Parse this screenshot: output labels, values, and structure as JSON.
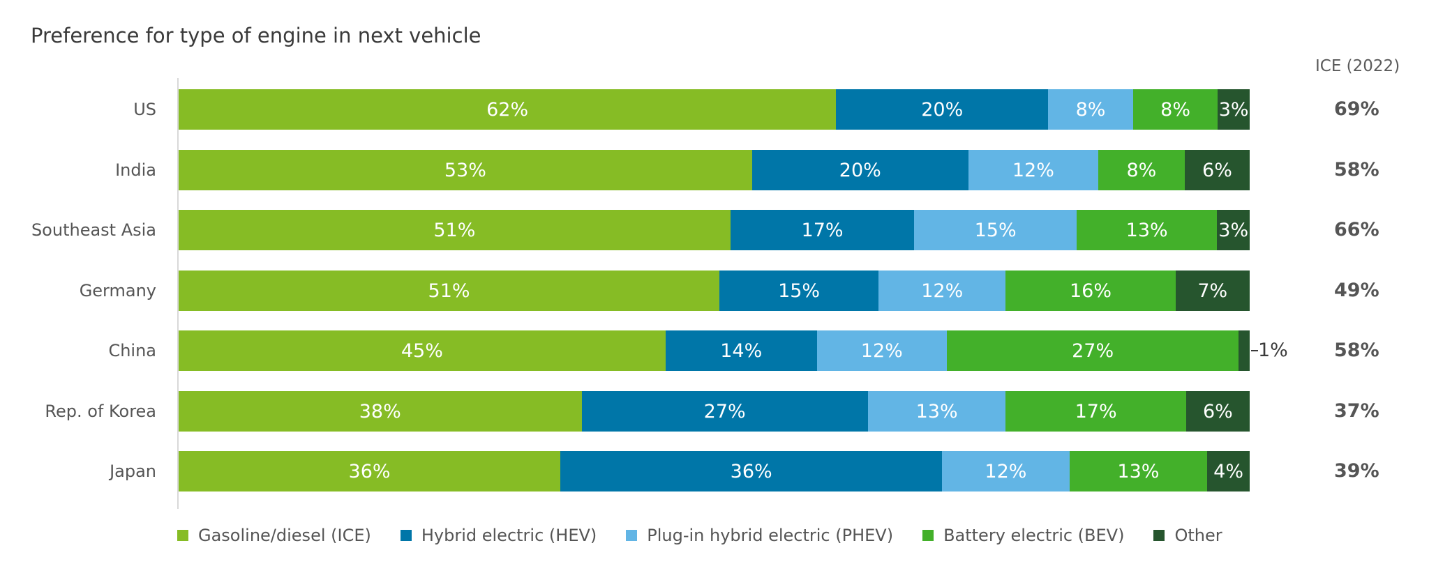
{
  "chart_data": {
    "type": "bar",
    "orientation": "horizontal",
    "stacked": true,
    "title": "Preference for type of engine in next vehicle",
    "xlabel": "",
    "ylabel": "",
    "xlim": [
      0,
      100
    ],
    "grid": false,
    "legend_position": "bottom",
    "categories": [
      "US",
      "India",
      "Southeast Asia",
      "Germany",
      "China",
      "Rep. of Korea",
      "Japan"
    ],
    "series": [
      {
        "name": "Gasoline/diesel (ICE)",
        "color": "#86bc25",
        "values": [
          62,
          53,
          51,
          51,
          45,
          38,
          36
        ]
      },
      {
        "name": "Hybrid electric (HEV)",
        "color": "#0076a8",
        "values": [
          20,
          20,
          17,
          15,
          14,
          27,
          36
        ]
      },
      {
        "name": "Plug-in hybrid electric (PHEV)",
        "color": "#62b5e5",
        "values": [
          8,
          12,
          15,
          12,
          12,
          13,
          12
        ]
      },
      {
        "name": "Battery electric (BEV)",
        "color": "#43b02a",
        "values": [
          8,
          8,
          13,
          16,
          27,
          17,
          13
        ]
      },
      {
        "name": "Other",
        "color": "#26552e",
        "values": [
          3,
          6,
          3,
          7,
          1,
          6,
          4
        ]
      }
    ],
    "side_column": {
      "header": "ICE (2022)",
      "values": [
        "69%",
        "58%",
        "66%",
        "49%",
        "58%",
        "37%",
        "39%"
      ]
    },
    "value_suffix": "%"
  }
}
